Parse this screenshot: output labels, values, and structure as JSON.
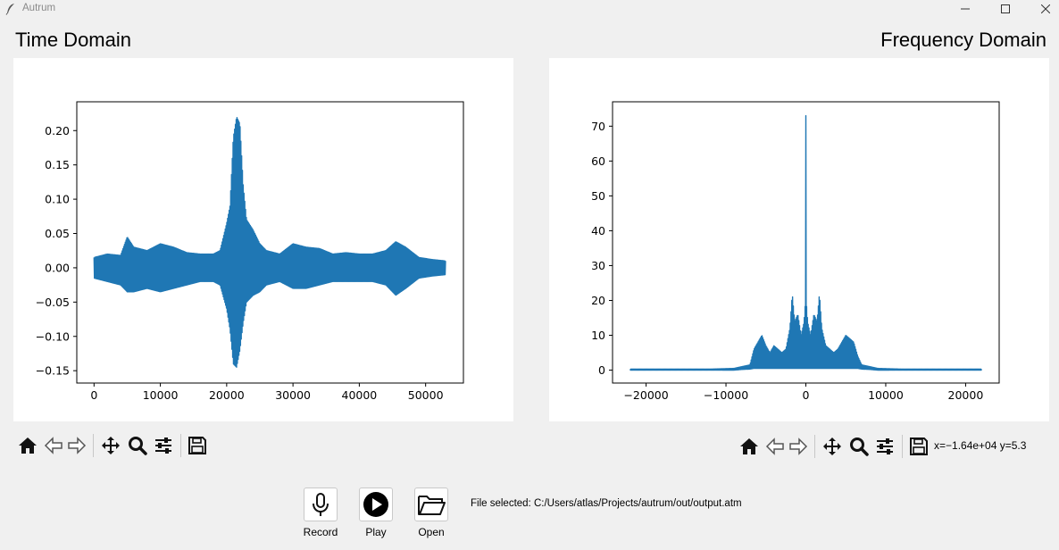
{
  "window": {
    "title": "Autrum",
    "app_icon": "feather-icon",
    "controls": [
      "minimize-icon",
      "maximize-icon",
      "close-icon"
    ]
  },
  "sections": {
    "time_title": "Time Domain",
    "freq_title": "Frequency Domain"
  },
  "toolbar": {
    "icons": [
      "home-icon",
      "back-icon",
      "forward-icon",
      "pan-icon",
      "zoom-icon",
      "configure-subplots-icon",
      "save-icon"
    ]
  },
  "freq_toolbar": {
    "coord_text": "x=−1.64e+04 y=5.3"
  },
  "controls": {
    "record_label": "Record",
    "play_label": "Play",
    "open_label": "Open"
  },
  "status": {
    "file_selected": "File selected: C:/Users/atlas/Projects/autrum/out/output.atm"
  },
  "colors": {
    "line": "#1f77b4",
    "background": "#f0f0f0",
    "plot_bg": "#ffffff"
  },
  "chart_data": [
    {
      "type": "line",
      "title": "",
      "xlabel": "",
      "ylabel": "",
      "xlim": [
        -2600,
        55700
      ],
      "ylim": [
        -0.168,
        0.242
      ],
      "x_ticks": [
        0,
        10000,
        20000,
        30000,
        40000,
        50000
      ],
      "x_tick_labels": [
        "0",
        "10000",
        "20000",
        "30000",
        "40000",
        "50000"
      ],
      "y_ticks": [
        -0.15,
        -0.1,
        -0.05,
        0.0,
        0.05,
        0.1,
        0.15,
        0.2
      ],
      "y_tick_labels": [
        "−0.15",
        "−0.10",
        "−0.05",
        "0.00",
        "0.05",
        "0.10",
        "0.15",
        "0.20"
      ],
      "grid": false,
      "series": [
        {
          "x": [
            0,
            2000,
            4000,
            5000,
            6000,
            8000,
            10000,
            12000,
            14000,
            16000,
            18000,
            19000,
            20000,
            20500,
            21000,
            21500,
            22000,
            22500,
            23000,
            24000,
            25000,
            26000,
            28000,
            30000,
            32000,
            34000,
            36000,
            38000,
            40000,
            42000,
            44000,
            45500,
            47000,
            49000,
            51000,
            53000
          ],
          "upper": [
            0.015,
            0.02,
            0.018,
            0.045,
            0.03,
            0.025,
            0.035,
            0.03,
            0.022,
            0.02,
            0.02,
            0.025,
            0.065,
            0.09,
            0.19,
            0.22,
            0.21,
            0.12,
            0.07,
            0.055,
            0.035,
            0.025,
            0.02,
            0.035,
            0.03,
            0.028,
            0.02,
            0.022,
            0.02,
            0.02,
            0.025,
            0.038,
            0.03,
            0.015,
            0.012,
            0.01
          ],
          "lower": [
            -0.015,
            -0.02,
            -0.025,
            -0.035,
            -0.035,
            -0.03,
            -0.035,
            -0.03,
            -0.025,
            -0.02,
            -0.02,
            -0.025,
            -0.06,
            -0.09,
            -0.14,
            -0.145,
            -0.12,
            -0.08,
            -0.05,
            -0.04,
            -0.035,
            -0.025,
            -0.02,
            -0.03,
            -0.03,
            -0.025,
            -0.02,
            -0.02,
            -0.02,
            -0.02,
            -0.025,
            -0.04,
            -0.03,
            -0.015,
            -0.012,
            -0.01
          ]
        }
      ]
    },
    {
      "type": "line",
      "title": "",
      "xlabel": "",
      "ylabel": "",
      "xlim": [
        -24200,
        24200
      ],
      "ylim": [
        -3.7,
        77
      ],
      "x_ticks": [
        -20000,
        -10000,
        0,
        10000,
        20000
      ],
      "x_tick_labels": [
        "−20000",
        "−10000",
        "0",
        "10000",
        "20000"
      ],
      "y_ticks": [
        0,
        10,
        20,
        30,
        40,
        50,
        60,
        70
      ],
      "y_tick_labels": [
        "0",
        "10",
        "20",
        "30",
        "40",
        "50",
        "60",
        "70"
      ],
      "grid": false,
      "series": [
        {
          "x": [
            -22000,
            -12000,
            -9000,
            -8000,
            -7000,
            -6500,
            -6000,
            -5500,
            -5000,
            -4500,
            -4000,
            -3500,
            -3000,
            -2500,
            -2000,
            -1700,
            -1400,
            -1000,
            -600,
            -300,
            -100,
            0,
            100,
            300,
            600,
            1000,
            1400,
            1700,
            2000,
            2500,
            3000,
            3500,
            4000,
            4500,
            5000,
            5500,
            6000,
            6500,
            7000,
            8000,
            9000,
            12000,
            22000
          ],
          "upper": [
            0.3,
            0.3,
            0.5,
            1.0,
            1.5,
            6,
            8,
            10,
            7,
            5,
            7,
            6,
            5,
            6,
            12,
            22,
            14,
            16,
            10,
            13,
            17,
            73,
            17,
            13,
            10,
            16,
            14,
            22,
            12,
            7,
            6,
            5,
            6,
            8,
            10,
            9,
            8,
            4,
            1.5,
            1.0,
            0.5,
            0.3,
            0.3
          ],
          "lower": [
            0.0,
            0.0,
            0.0,
            0.2,
            0.3,
            0.5,
            0.5,
            0.5,
            0.5,
            0.5,
            0.5,
            0.5,
            0.5,
            0.5,
            0.5,
            0.5,
            0.5,
            0.5,
            0.5,
            0.5,
            0.5,
            0.5,
            0.5,
            0.5,
            0.5,
            0.5,
            0.5,
            0.5,
            0.5,
            0.5,
            0.5,
            0.5,
            0.5,
            0.5,
            0.5,
            0.5,
            0.5,
            0.5,
            0.3,
            0.2,
            0.0,
            0.0,
            0.0
          ]
        }
      ]
    }
  ]
}
